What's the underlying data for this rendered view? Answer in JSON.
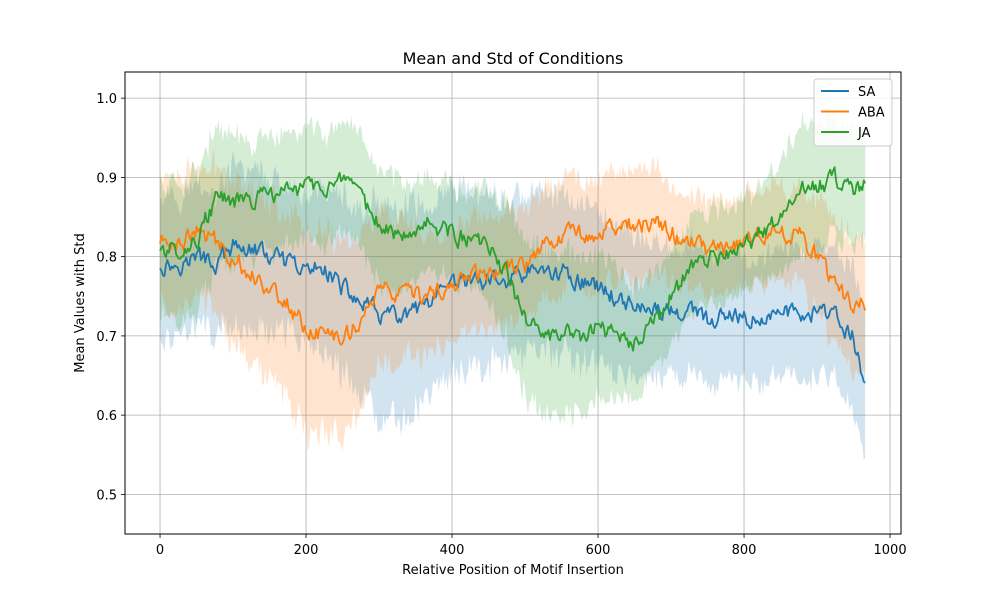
{
  "chart_data": {
    "type": "line",
    "title": "Mean and Std of Conditions",
    "xlabel": "Relative Position of Motif Insertion",
    "ylabel": "Mean Values with Std",
    "xlim": [
      -48,
      1015
    ],
    "ylim": [
      0.45,
      1.033
    ],
    "xticks": [
      0,
      200,
      400,
      600,
      800,
      1000
    ],
    "yticks": [
      0.5,
      0.6,
      0.7,
      0.8,
      0.9,
      1.0
    ],
    "ytick_labels": [
      "0.5",
      "0.6",
      "0.7",
      "0.8",
      "0.9",
      "1.0"
    ],
    "grid": true,
    "legend_position": "top-right",
    "series": [
      {
        "name": "SA",
        "color": "#1f77b4",
        "x": [
          0,
          25,
          50,
          75,
          100,
          125,
          150,
          175,
          200,
          225,
          250,
          275,
          300,
          325,
          350,
          375,
          400,
          425,
          450,
          475,
          500,
          525,
          550,
          575,
          600,
          625,
          650,
          675,
          700,
          725,
          750,
          775,
          800,
          825,
          850,
          875,
          900,
          925,
          950,
          966
        ],
        "mean": [
          0.79,
          0.79,
          0.8,
          0.79,
          0.81,
          0.81,
          0.8,
          0.79,
          0.78,
          0.79,
          0.76,
          0.74,
          0.73,
          0.72,
          0.73,
          0.74,
          0.76,
          0.77,
          0.77,
          0.77,
          0.78,
          0.78,
          0.78,
          0.77,
          0.76,
          0.75,
          0.74,
          0.73,
          0.73,
          0.73,
          0.72,
          0.72,
          0.72,
          0.72,
          0.73,
          0.73,
          0.73,
          0.72,
          0.7,
          0.63
        ],
        "std": [
          0.1,
          0.09,
          0.09,
          0.09,
          0.1,
          0.1,
          0.1,
          0.09,
          0.09,
          0.1,
          0.11,
          0.12,
          0.13,
          0.14,
          0.13,
          0.12,
          0.12,
          0.11,
          0.11,
          0.1,
          0.1,
          0.1,
          0.1,
          0.1,
          0.1,
          0.09,
          0.09,
          0.09,
          0.08,
          0.08,
          0.08,
          0.08,
          0.08,
          0.08,
          0.08,
          0.08,
          0.08,
          0.08,
          0.09,
          0.1
        ]
      },
      {
        "name": "ABA",
        "color": "#ff7f0e",
        "x": [
          0,
          25,
          50,
          75,
          100,
          125,
          150,
          175,
          200,
          225,
          250,
          275,
          300,
          325,
          350,
          375,
          400,
          425,
          450,
          475,
          500,
          525,
          550,
          575,
          600,
          625,
          650,
          675,
          700,
          725,
          750,
          775,
          800,
          825,
          850,
          875,
          900,
          925,
          950,
          966
        ],
        "mean": [
          0.82,
          0.82,
          0.83,
          0.82,
          0.8,
          0.78,
          0.76,
          0.74,
          0.71,
          0.7,
          0.7,
          0.72,
          0.76,
          0.75,
          0.75,
          0.75,
          0.76,
          0.78,
          0.78,
          0.78,
          0.79,
          0.82,
          0.83,
          0.83,
          0.83,
          0.84,
          0.84,
          0.84,
          0.83,
          0.82,
          0.81,
          0.81,
          0.82,
          0.83,
          0.83,
          0.83,
          0.8,
          0.76,
          0.74,
          0.74
        ],
        "std": [
          0.08,
          0.08,
          0.08,
          0.09,
          0.1,
          0.11,
          0.11,
          0.12,
          0.13,
          0.13,
          0.12,
          0.11,
          0.1,
          0.09,
          0.08,
          0.07,
          0.07,
          0.07,
          0.07,
          0.07,
          0.07,
          0.07,
          0.07,
          0.07,
          0.07,
          0.07,
          0.07,
          0.07,
          0.06,
          0.06,
          0.06,
          0.06,
          0.06,
          0.06,
          0.06,
          0.06,
          0.07,
          0.08,
          0.08,
          0.08
        ]
      },
      {
        "name": "JA",
        "color": "#2ca02c",
        "x": [
          0,
          25,
          50,
          75,
          100,
          125,
          150,
          175,
          200,
          225,
          250,
          275,
          300,
          325,
          350,
          375,
          400,
          425,
          450,
          475,
          500,
          525,
          550,
          575,
          600,
          625,
          650,
          675,
          700,
          725,
          750,
          775,
          800,
          825,
          850,
          875,
          900,
          925,
          950,
          966
        ],
        "mean": [
          0.81,
          0.81,
          0.82,
          0.87,
          0.87,
          0.87,
          0.88,
          0.88,
          0.89,
          0.89,
          0.89,
          0.87,
          0.84,
          0.83,
          0.84,
          0.84,
          0.83,
          0.82,
          0.81,
          0.78,
          0.72,
          0.7,
          0.7,
          0.7,
          0.71,
          0.7,
          0.69,
          0.71,
          0.75,
          0.78,
          0.8,
          0.8,
          0.81,
          0.83,
          0.85,
          0.88,
          0.89,
          0.9,
          0.88,
          0.89
        ],
        "std": [
          0.08,
          0.08,
          0.09,
          0.09,
          0.08,
          0.07,
          0.07,
          0.07,
          0.07,
          0.07,
          0.07,
          0.07,
          0.07,
          0.07,
          0.06,
          0.06,
          0.06,
          0.06,
          0.07,
          0.09,
          0.1,
          0.1,
          0.1,
          0.1,
          0.09,
          0.08,
          0.07,
          0.06,
          0.06,
          0.06,
          0.06,
          0.06,
          0.06,
          0.06,
          0.07,
          0.08,
          0.08,
          0.07,
          0.07,
          0.07
        ]
      }
    ]
  }
}
